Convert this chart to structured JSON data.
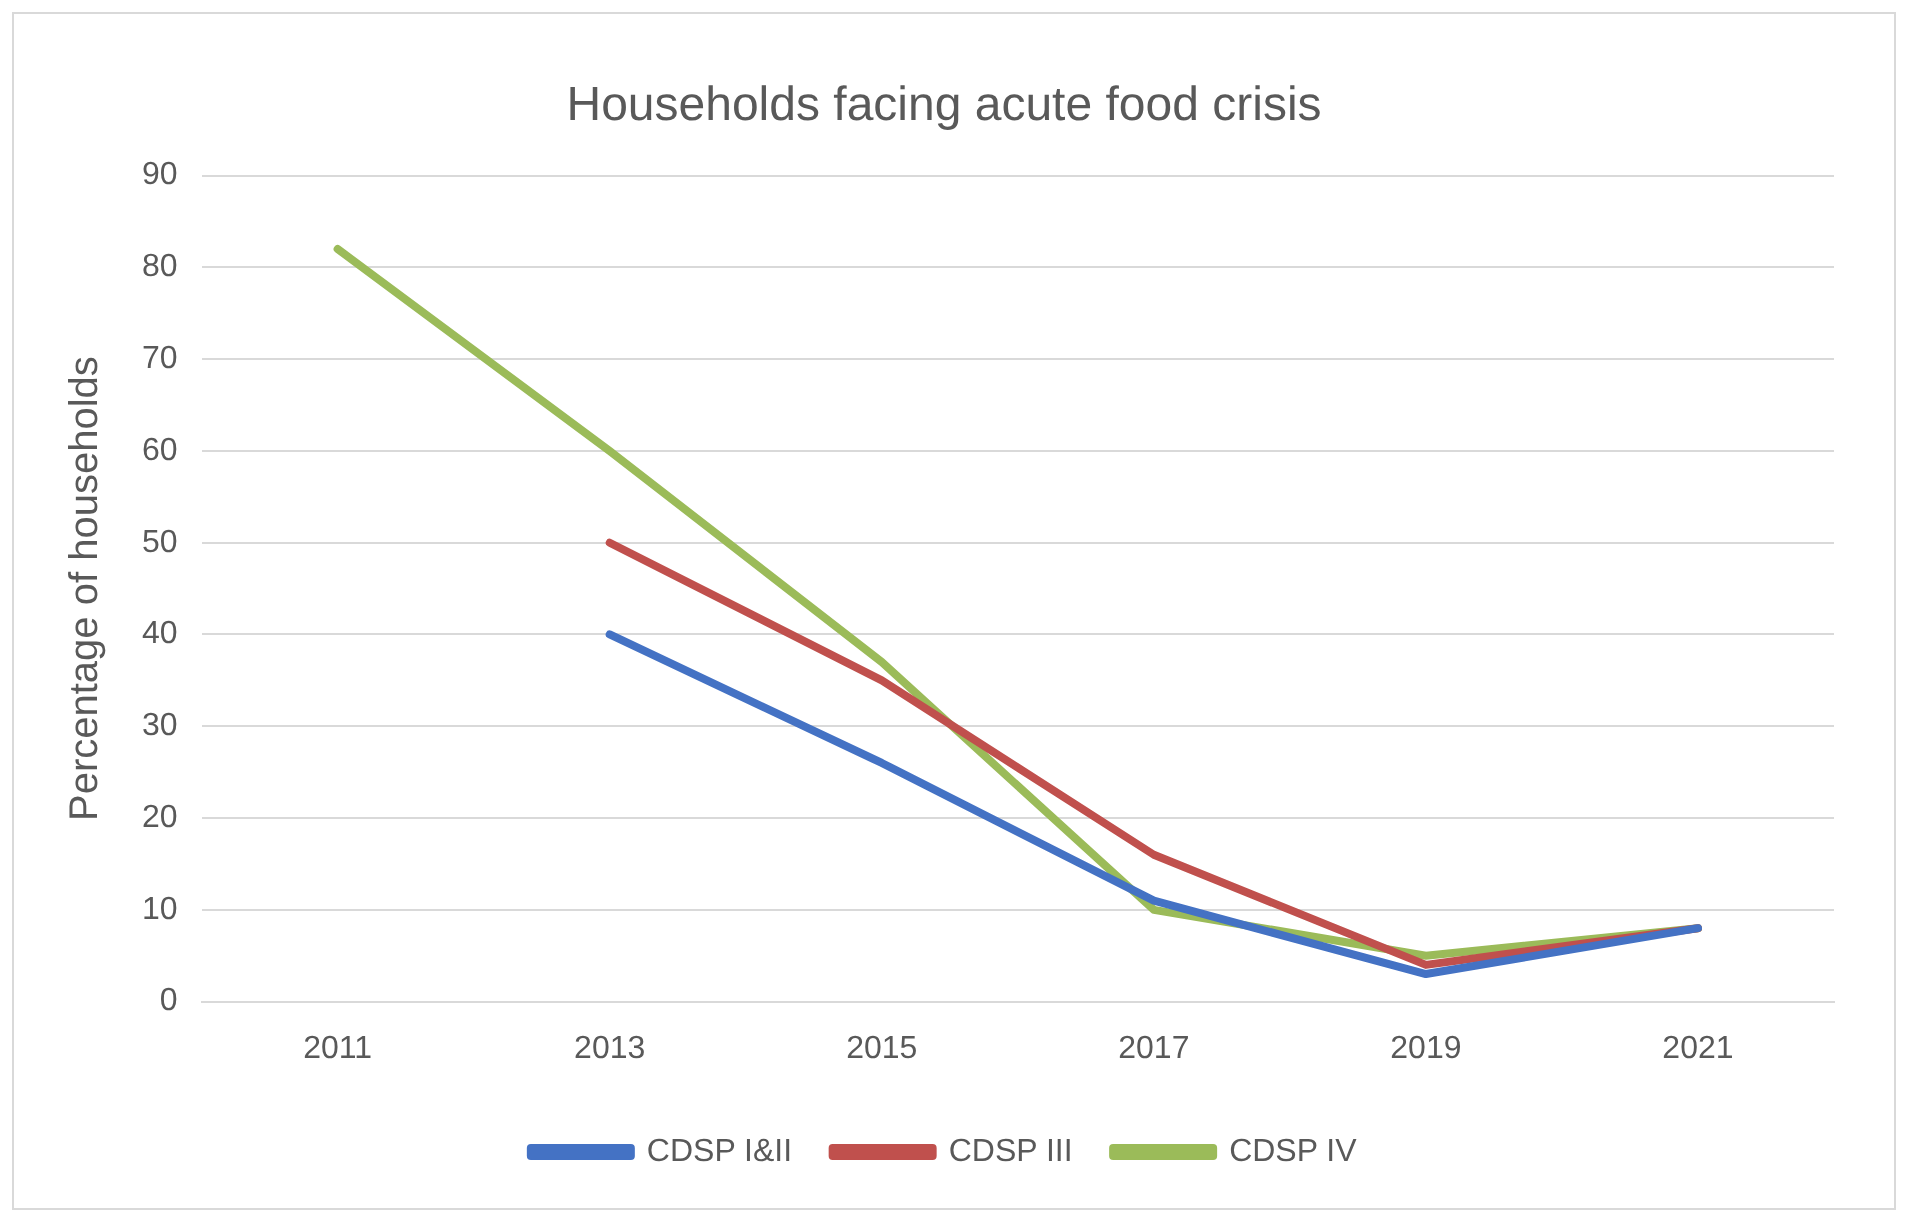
{
  "chart_data": {
    "type": "line",
    "title": "Households facing acute food crisis",
    "ylabel": "Percentage of households",
    "categories": [
      "2011",
      "2013",
      "2015",
      "2017",
      "2019",
      "2021"
    ],
    "series": [
      {
        "name": "CDSP I&II",
        "color": "#4472c4",
        "values": [
          null,
          40,
          26,
          11,
          3,
          8
        ]
      },
      {
        "name": "CDSP III",
        "color": "#c0504d",
        "values": [
          null,
          50,
          35,
          16,
          4,
          8
        ]
      },
      {
        "name": "CDSP IV",
        "color": "#9bbb59",
        "values": [
          82,
          60,
          37,
          10,
          5,
          8
        ]
      }
    ],
    "ylim": [
      0,
      90
    ],
    "yticks": [
      0,
      10,
      20,
      30,
      40,
      50,
      60,
      70,
      80,
      90
    ],
    "grid": "y",
    "legend": "bottom",
    "marker": "none",
    "line_style": "solid"
  }
}
